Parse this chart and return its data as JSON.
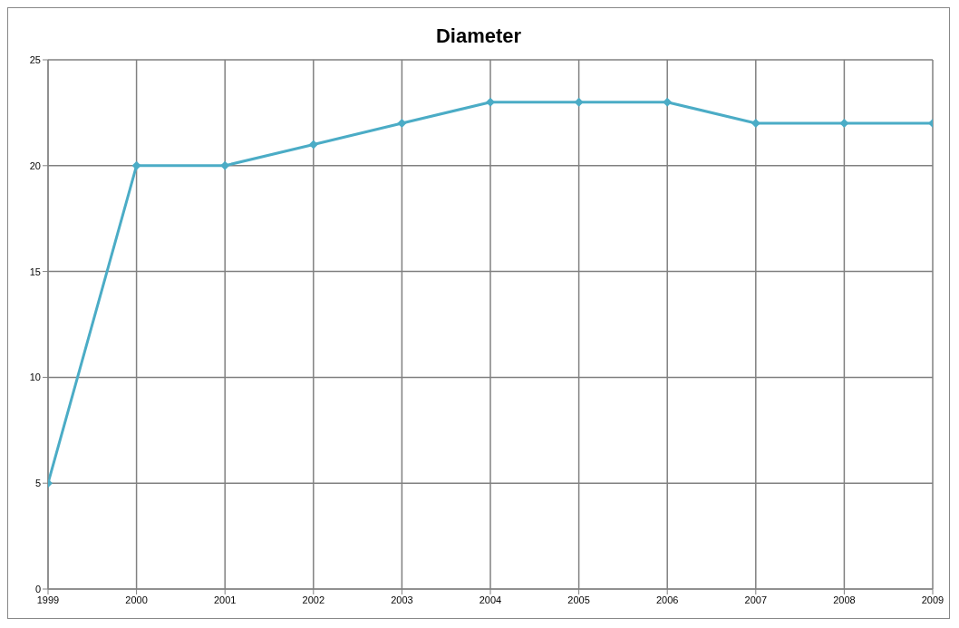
{
  "chart_data": {
    "type": "line",
    "title": "Diameter",
    "x": [
      1999,
      2000,
      2001,
      2002,
      2003,
      2004,
      2005,
      2006,
      2007,
      2008,
      2009
    ],
    "series": [
      {
        "color": "#4bacc6",
        "values": [
          5,
          20,
          20,
          21,
          22,
          23,
          23,
          23,
          22,
          22,
          22
        ]
      }
    ],
    "xlim": [
      1999,
      2009
    ],
    "xticks": [
      1999,
      2000,
      2001,
      2002,
      2003,
      2004,
      2005,
      2006,
      2007,
      2008,
      2009
    ],
    "ylim": [
      0,
      25
    ],
    "yticks": [
      0,
      5,
      10,
      15,
      20,
      25
    ],
    "grid": true,
    "marker": "diamond"
  }
}
